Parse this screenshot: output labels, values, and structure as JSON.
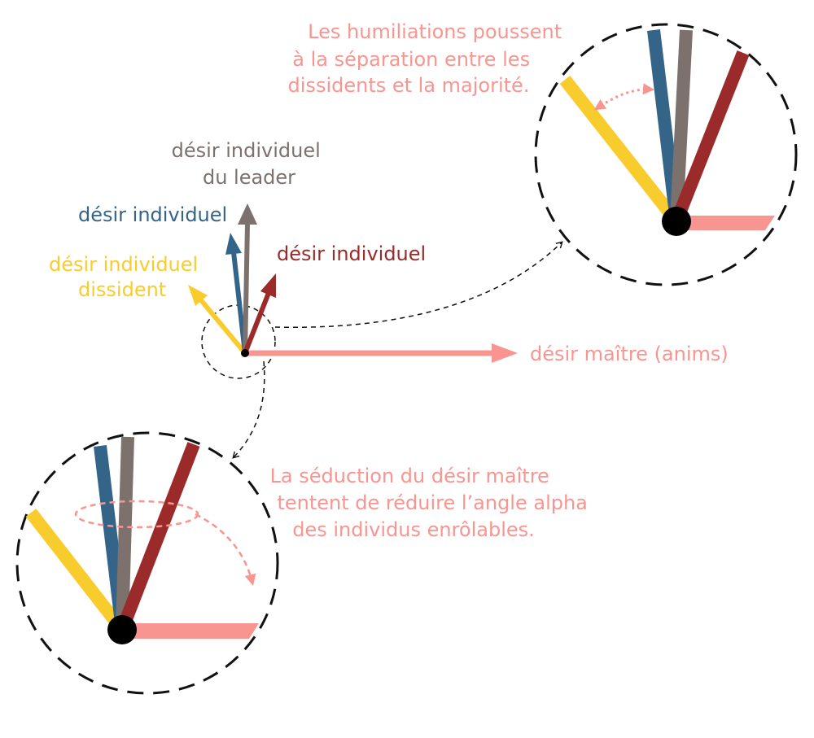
{
  "colors": {
    "yellow": "#F9CC2E",
    "blue": "#356489",
    "grey": "#7C716D",
    "red": "#9B2B2A",
    "salmon": "#F99590",
    "pivot": "#000000",
    "dash": "#111111"
  },
  "labels": {
    "leader": [
      "désir individuel",
      "du leader"
    ],
    "blue": [
      "désir individuel"
    ],
    "red": [
      "désir individuel"
    ],
    "dissident": [
      "désir individuel",
      "dissident"
    ],
    "master": [
      "désir maître (anims)"
    ]
  },
  "annotations": {
    "humiliation": [
      "Les humiliations poussent",
      "à la séparation entre les",
      "dissidents et la majorité."
    ],
    "seduction": [
      "La séduction du désir maître",
      "tentent de réduire l’angle alpha",
      "des individus enrôlables."
    ]
  },
  "icons": {
    "arrowhead": "triangle-arrowhead",
    "pivot": "filled-circle"
  }
}
